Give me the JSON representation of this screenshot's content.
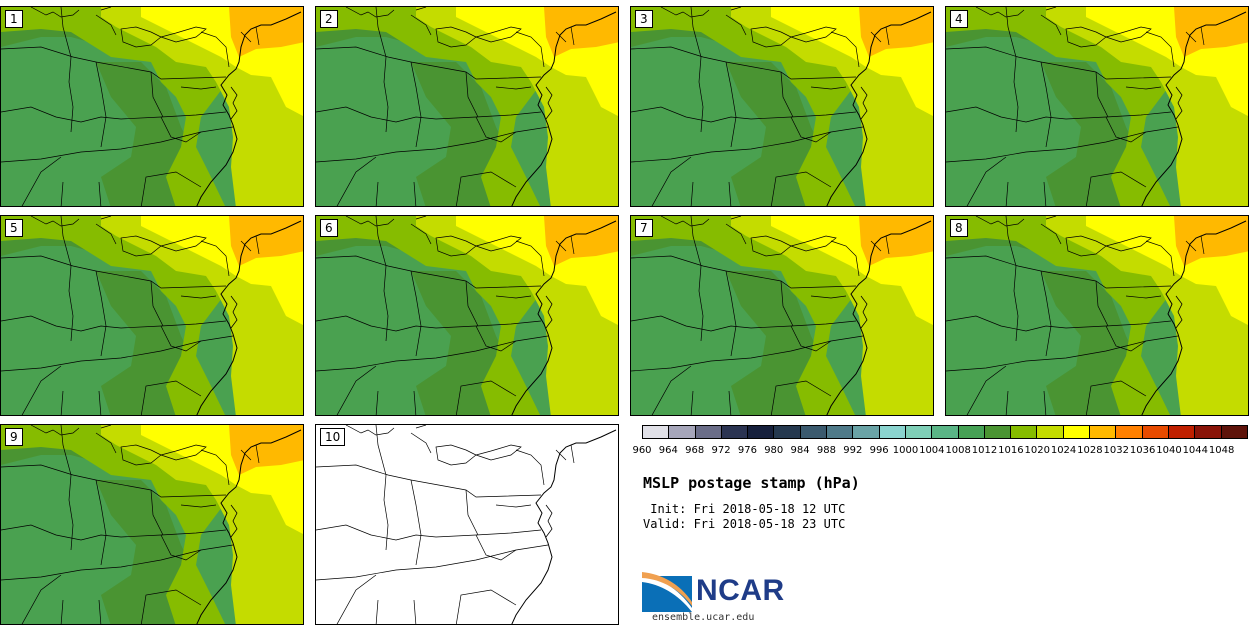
{
  "panels": [
    {
      "label": "1",
      "empty": false
    },
    {
      "label": "2",
      "empty": false
    },
    {
      "label": "3",
      "empty": false
    },
    {
      "label": "4",
      "empty": false
    },
    {
      "label": "5",
      "empty": false
    },
    {
      "label": "6",
      "empty": false
    },
    {
      "label": "7",
      "empty": false
    },
    {
      "label": "8",
      "empty": false
    },
    {
      "label": "9",
      "empty": false
    },
    {
      "label": "10",
      "empty": true
    }
  ],
  "legend": {
    "labels": [
      "960",
      "964",
      "968",
      "972",
      "976",
      "980",
      "984",
      "988",
      "992",
      "996",
      "1000",
      "1004",
      "1008",
      "1012",
      "1016",
      "1020",
      "1024",
      "1028",
      "1032",
      "1036",
      "1040",
      "1044",
      "1048"
    ],
    "colors": [
      "#e1e1e8",
      "#a6a6ba",
      "#6a6d88",
      "#2b3452",
      "#16203c",
      "#25394f",
      "#3b5a6e",
      "#4f7a89",
      "#6aa3a6",
      "#8bd4cf",
      "#7fcfb7",
      "#5ab586",
      "#46a155",
      "#4a9432",
      "#86bc00",
      "#c4dc00",
      "#ffff00",
      "#ffb900",
      "#ff8000",
      "#e84b00",
      "#c02000",
      "#8a1408",
      "#5e130a"
    ]
  },
  "title": "MSLP postage stamp (hPa)",
  "init": " Init: Fri 2018-05-18 12 UTC",
  "valid": "Valid: Fri 2018-05-18 23 UTC",
  "logo_text": "NCAR",
  "website": "ensemble.ucar.edu"
}
